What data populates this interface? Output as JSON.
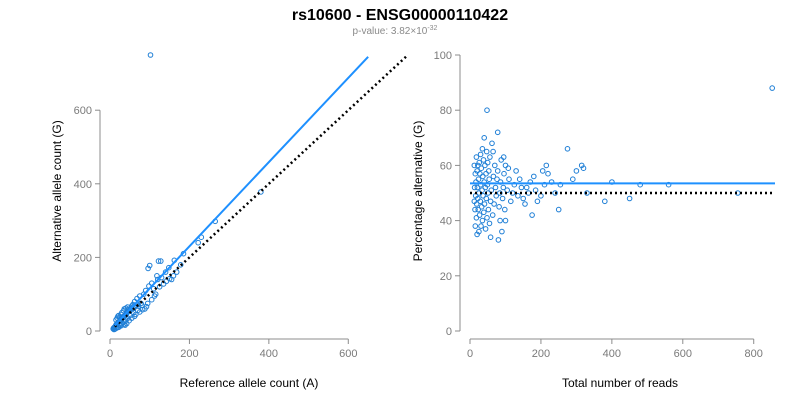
{
  "header": {
    "title": "rs10600 - ENSG00000110422",
    "pvalue_prefix": "p-value: 3.82×10",
    "pvalue_exponent": "-32"
  },
  "colors": {
    "points": "#1f7fd6",
    "fit_line": "#1e90ff",
    "reference_line": "#000000",
    "axis": "#8c8c8c"
  },
  "chart_data": [
    {
      "type": "scatter",
      "title": "",
      "xlabel": "Reference allele count (A)",
      "ylabel": "Alternative allele count (G)",
      "xlim": [
        0,
        700
      ],
      "ylim": [
        0,
        750
      ],
      "xticks": [
        0,
        200,
        400,
        600
      ],
      "yticks": [
        0,
        200,
        400,
        600
      ],
      "grid": false,
      "fit_line": {
        "x": [
          12,
          650
        ],
        "y": [
          15,
          745
        ],
        "style": "solid",
        "color": "#1e90ff"
      },
      "reference_line": {
        "x": [
          12,
          750
        ],
        "y": [
          12,
          750
        ],
        "style": "dotted",
        "color": "#000000"
      },
      "points": [
        [
          102,
          750
        ],
        [
          380,
          378
        ],
        [
          265,
          298
        ],
        [
          230,
          255
        ],
        [
          222,
          240
        ],
        [
          185,
          210
        ],
        [
          162,
          192
        ],
        [
          178,
          180
        ],
        [
          128,
          190
        ],
        [
          122,
          190
        ],
        [
          148,
          172
        ],
        [
          140,
          160
        ],
        [
          118,
          150
        ],
        [
          105,
          130
        ],
        [
          98,
          122
        ],
        [
          90,
          110
        ],
        [
          100,
          178
        ],
        [
          96,
          170
        ],
        [
          120,
          140
        ],
        [
          130,
          145
        ],
        [
          110,
          115
        ],
        [
          85,
          100
        ],
        [
          75,
          95
        ],
        [
          68,
          88
        ],
        [
          62,
          80
        ],
        [
          58,
          72
        ],
        [
          55,
          68
        ],
        [
          50,
          60
        ],
        [
          48,
          55
        ],
        [
          45,
          52
        ],
        [
          42,
          48
        ],
        [
          40,
          45
        ],
        [
          38,
          42
        ],
        [
          35,
          40
        ],
        [
          32,
          36
        ],
        [
          30,
          34
        ],
        [
          28,
          30
        ],
        [
          26,
          29
        ],
        [
          24,
          27
        ],
        [
          22,
          25
        ],
        [
          20,
          22
        ],
        [
          18,
          20
        ],
        [
          16,
          18
        ],
        [
          15,
          16
        ],
        [
          14,
          14
        ],
        [
          13,
          12
        ],
        [
          12,
          11
        ],
        [
          11,
          10
        ],
        [
          10,
          9
        ],
        [
          9,
          8
        ],
        [
          8,
          6
        ],
        [
          15,
          30
        ],
        [
          18,
          35
        ],
        [
          20,
          40
        ],
        [
          22,
          42
        ],
        [
          25,
          38
        ],
        [
          28,
          45
        ],
        [
          30,
          50
        ],
        [
          34,
          55
        ],
        [
          36,
          60
        ],
        [
          40,
          62
        ],
        [
          44,
          65
        ],
        [
          46,
          58
        ],
        [
          52,
          62
        ],
        [
          55,
          58
        ],
        [
          60,
          66
        ],
        [
          65,
          70
        ],
        [
          70,
          72
        ],
        [
          72,
          68
        ],
        [
          78,
          75
        ],
        [
          80,
          70
        ],
        [
          60,
          50
        ],
        [
          50,
          42
        ],
        [
          45,
          35
        ],
        [
          40,
          30
        ],
        [
          35,
          25
        ],
        [
          30,
          20
        ],
        [
          25,
          15
        ],
        [
          20,
          12
        ],
        [
          18,
          10
        ],
        [
          70,
          56
        ],
        [
          88,
          60
        ],
        [
          92,
          66
        ],
        [
          62,
          40
        ],
        [
          55,
          35
        ],
        [
          48,
          28
        ],
        [
          35,
          18
        ],
        [
          28,
          14
        ],
        [
          22,
          10
        ],
        [
          16,
          8
        ],
        [
          12,
          5
        ],
        [
          10,
          4
        ],
        [
          42,
          20
        ],
        [
          38,
          16
        ],
        [
          65,
          45
        ],
        [
          75,
          52
        ],
        [
          82,
          58
        ],
        [
          95,
          75
        ],
        [
          105,
          85
        ],
        [
          112,
          95
        ],
        [
          115,
          100
        ],
        [
          125,
          120
        ],
        [
          135,
          128
        ],
        [
          142,
          135
        ],
        [
          150,
          142
        ],
        [
          155,
          140
        ],
        [
          160,
          150
        ],
        [
          168,
          160
        ]
      ]
    },
    {
      "type": "scatter",
      "title": "",
      "xlabel": "Total number of reads",
      "ylabel": "Percentage alternative (G)",
      "xlim": [
        0,
        860
      ],
      "ylim": [
        0,
        100
      ],
      "xticks": [
        0,
        200,
        400,
        600,
        800
      ],
      "yticks": [
        0,
        20,
        40,
        60,
        80,
        100
      ],
      "grid": false,
      "fit_line": {
        "x": [
          0,
          860
        ],
        "y": [
          53.5,
          53.5
        ],
        "style": "solid",
        "color": "#1e90ff"
      },
      "reference_line": {
        "x": [
          0,
          860
        ],
        "y": [
          50,
          50
        ],
        "style": "dotted",
        "color": "#000000"
      },
      "points": [
        [
          852,
          88
        ],
        [
          755,
          50
        ],
        [
          560,
          53
        ],
        [
          480,
          53
        ],
        [
          450,
          48
        ],
        [
          380,
          47
        ],
        [
          400,
          54
        ],
        [
          330,
          50
        ],
        [
          320,
          59
        ],
        [
          315,
          60
        ],
        [
          300,
          58
        ],
        [
          290,
          55
        ],
        [
          275,
          66
        ],
        [
          255,
          53
        ],
        [
          250,
          44
        ],
        [
          240,
          50
        ],
        [
          230,
          54
        ],
        [
          220,
          57
        ],
        [
          215,
          60
        ],
        [
          210,
          53
        ],
        [
          205,
          58
        ],
        [
          200,
          49
        ],
        [
          190,
          47
        ],
        [
          185,
          51
        ],
        [
          180,
          56
        ],
        [
          175,
          42
        ],
        [
          170,
          54
        ],
        [
          165,
          50
        ],
        [
          160,
          52
        ],
        [
          155,
          46
        ],
        [
          150,
          48
        ],
        [
          145,
          52
        ],
        [
          140,
          55
        ],
        [
          135,
          49
        ],
        [
          130,
          58
        ],
        [
          125,
          53
        ],
        [
          120,
          50
        ],
        [
          115,
          47
        ],
        [
          110,
          55
        ],
        [
          105,
          51
        ],
        [
          100,
          40
        ],
        [
          100,
          60
        ],
        [
          98,
          44
        ],
        [
          96,
          57
        ],
        [
          94,
          52
        ],
        [
          92,
          48
        ],
        [
          90,
          36
        ],
        [
          88,
          62
        ],
        [
          86,
          54
        ],
        [
          84,
          50
        ],
        [
          82,
          45
        ],
        [
          80,
          33
        ],
        [
          78,
          58
        ],
        [
          78,
          72
        ],
        [
          76,
          55
        ],
        [
          74,
          49
        ],
        [
          72,
          52
        ],
        [
          70,
          60
        ],
        [
          68,
          46
        ],
        [
          66,
          56
        ],
        [
          64,
          42
        ],
        [
          62,
          68
        ],
        [
          60,
          51
        ],
        [
          58,
          47
        ],
        [
          56,
          63
        ],
        [
          55,
          39
        ],
        [
          54,
          55
        ],
        [
          53,
          58
        ],
        [
          52,
          44
        ],
        [
          51,
          50
        ],
        [
          50,
          61
        ],
        [
          49,
          53
        ],
        [
          48,
          41
        ],
        [
          47,
          65
        ],
        [
          46,
          48
        ],
        [
          45,
          57
        ],
        [
          44,
          37
        ],
        [
          43,
          52
        ],
        [
          42,
          60
        ],
        [
          41,
          46
        ],
        [
          40,
          70
        ],
        [
          40,
          54
        ],
        [
          39,
          43
        ],
        [
          38,
          62
        ],
        [
          37,
          49
        ],
        [
          36,
          56
        ],
        [
          35,
          40
        ],
        [
          35,
          66
        ],
        [
          34,
          51
        ],
        [
          33,
          45
        ],
        [
          32,
          59
        ],
        [
          31,
          38
        ],
        [
          30,
          53
        ],
        [
          30,
          64
        ],
        [
          29,
          47
        ],
        [
          28,
          57
        ],
        [
          27,
          42
        ],
        [
          26,
          61
        ],
        [
          25,
          50
        ],
        [
          25,
          36
        ],
        [
          24,
          55
        ],
        [
          23,
          44
        ],
        [
          22,
          60
        ],
        [
          22,
          48
        ],
        [
          21,
          52
        ],
        [
          20,
          35
        ],
        [
          20,
          58
        ],
        [
          19,
          46
        ],
        [
          18,
          63
        ],
        [
          18,
          41
        ],
        [
          17,
          54
        ],
        [
          16,
          49
        ],
        [
          15,
          57
        ],
        [
          15,
          38
        ],
        [
          14,
          44
        ],
        [
          13,
          52
        ],
        [
          12,
          47
        ],
        [
          12,
          60
        ],
        [
          48,
          80
        ],
        [
          65,
          65
        ],
        [
          58,
          34
        ],
        [
          85,
          40
        ],
        [
          95,
          63
        ],
        [
          108,
          59
        ]
      ]
    }
  ]
}
